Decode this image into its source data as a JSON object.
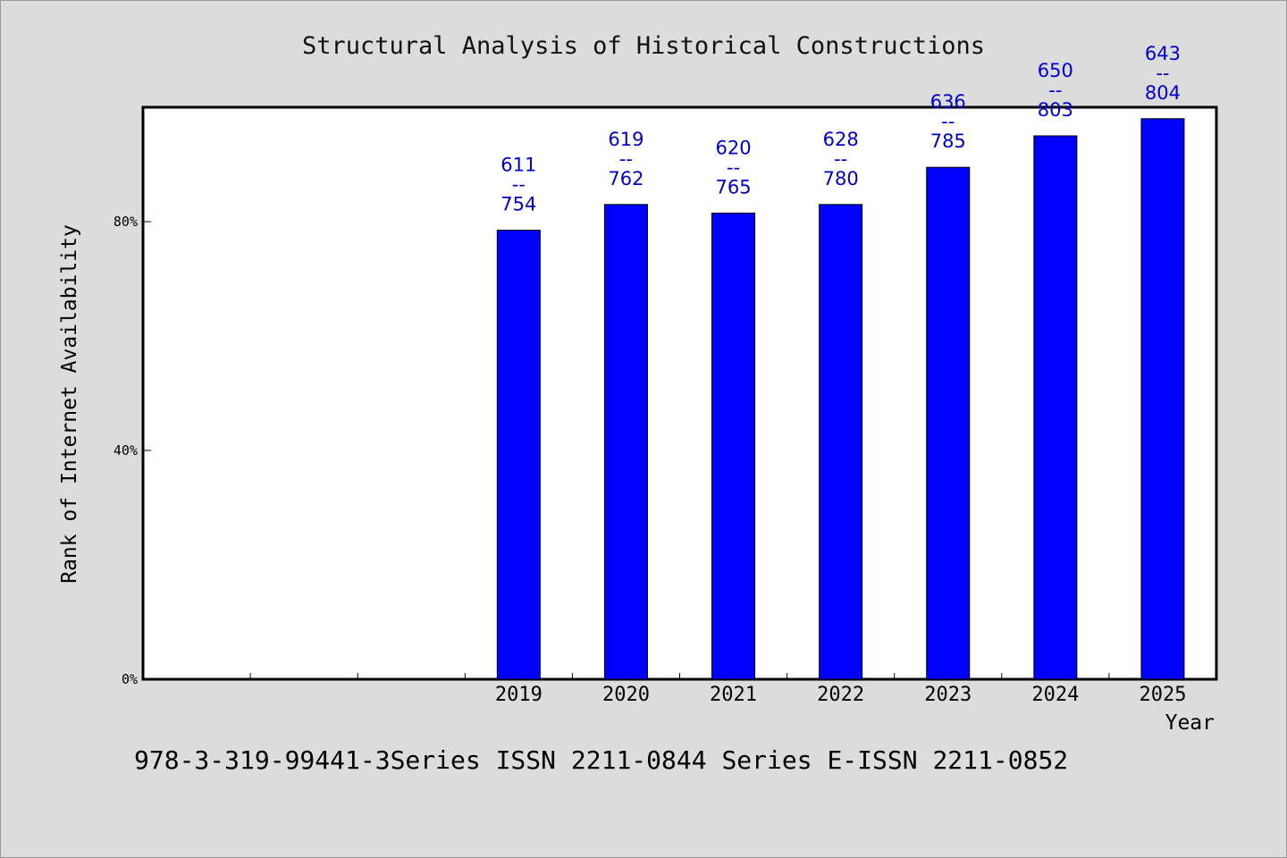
{
  "footer": "978-3-319-99441-3Series ISSN 2211-0844 Series E-ISSN 2211-0852",
  "chart_data": {
    "type": "bar",
    "title": "Structural Analysis of Historical Constructions",
    "xlabel": "Year",
    "ylabel": "Rank of Internet Availability",
    "categories": [
      "2019",
      "2020",
      "2021",
      "2022",
      "2023",
      "2024",
      "2025"
    ],
    "values": [
      78.5,
      83,
      81.5,
      83,
      89.5,
      95,
      98
    ],
    "label_top": [
      "611",
      "619",
      "620",
      "628",
      "636",
      "650",
      "643"
    ],
    "label_bottom": [
      "754",
      "762",
      "765",
      "780",
      "785",
      "803",
      "804"
    ],
    "label_separator": "--",
    "yticks": [
      0,
      40,
      80
    ],
    "ytick_labels": [
      "0%",
      "40%",
      "80%"
    ],
    "ylim": [
      0,
      100
    ],
    "x_slots": 10,
    "grid": false,
    "colors": {
      "bar": "#0000ff",
      "label": "#0000cc",
      "background": "#dcdcdc",
      "plot_bg": "#ffffff"
    }
  }
}
